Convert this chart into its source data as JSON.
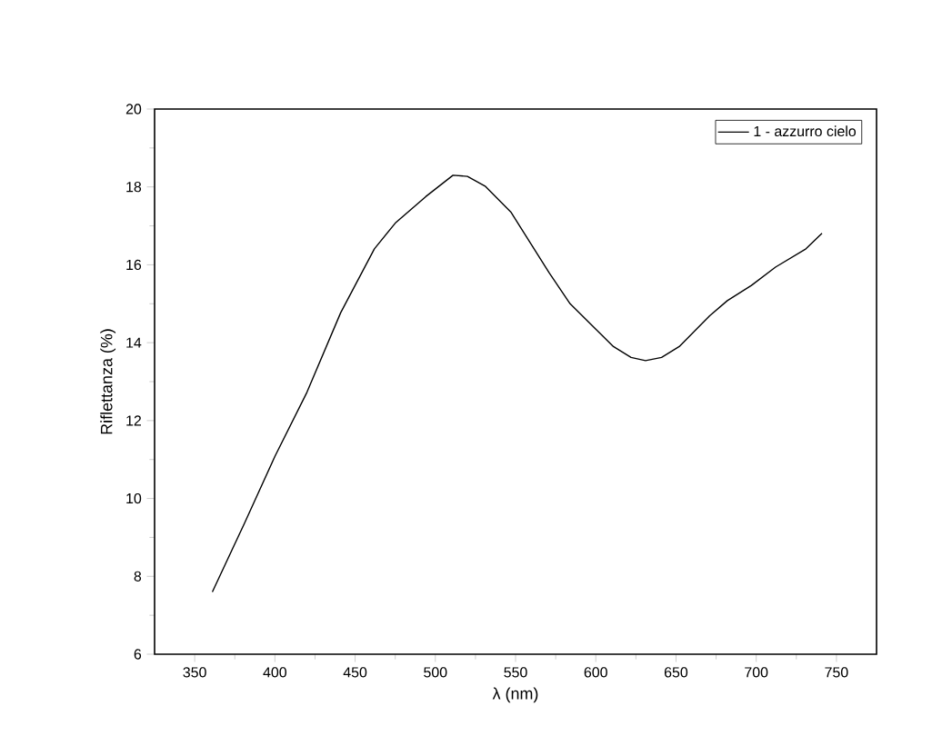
{
  "chart_data": {
    "type": "line",
    "xlabel": "λ (nm)",
    "ylabel": "Riflettanza (%)",
    "x": [
      361,
      381,
      400,
      420,
      441,
      462,
      475,
      494,
      511,
      520,
      531,
      547,
      571,
      584,
      611,
      622,
      631,
      641,
      652,
      671,
      682,
      697,
      712,
      731,
      741
    ],
    "series": [
      {
        "name": "1 - azzurro cielo",
        "color": "#000000",
        "values": [
          7.6,
          9.36,
          11.08,
          12.73,
          14.77,
          16.41,
          17.07,
          17.75,
          18.3,
          18.27,
          18.02,
          17.36,
          15.79,
          15.0,
          13.9,
          13.62,
          13.54,
          13.62,
          13.9,
          14.69,
          15.08,
          15.47,
          15.94,
          16.41,
          16.81
        ]
      }
    ],
    "xlim": [
      325,
      775
    ],
    "ylim": [
      6,
      20
    ],
    "xticks": [
      350,
      400,
      450,
      500,
      550,
      600,
      650,
      700,
      750
    ],
    "yticks": [
      6,
      8,
      10,
      12,
      14,
      16,
      18,
      20
    ],
    "grid": false,
    "legend": "top right",
    "marker": "none",
    "line_style": "solid"
  }
}
